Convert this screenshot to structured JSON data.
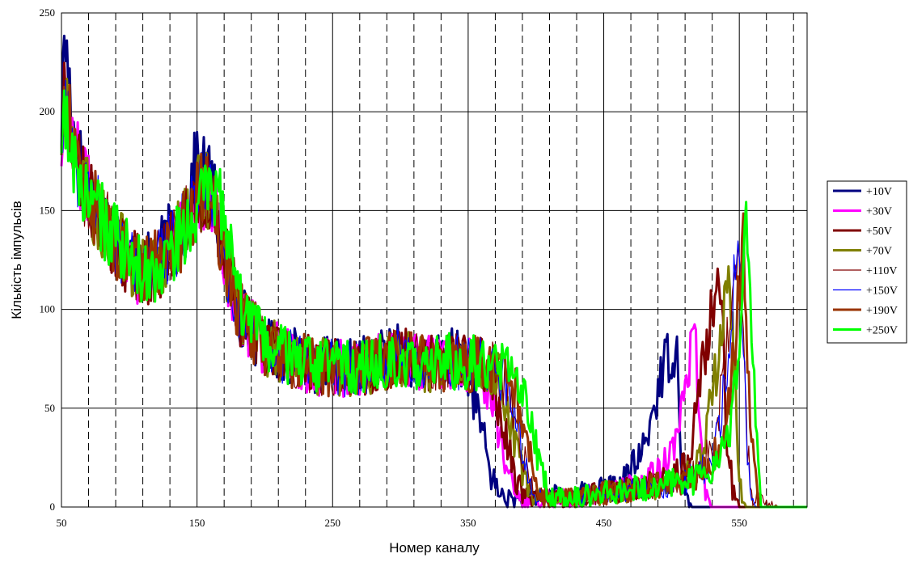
{
  "chart_data": {
    "type": "line",
    "xlabel": "Номер каналу",
    "ylabel": "Кількість імпульсів",
    "xlim": [
      50,
      600
    ],
    "ylim": [
      0,
      250
    ],
    "x_ticks": [
      50,
      150,
      250,
      350,
      450,
      550
    ],
    "y_ticks": [
      0,
      50,
      100,
      150,
      200,
      250
    ],
    "major_x_grid": [
      150,
      250,
      350,
      450,
      550
    ],
    "minor_x_grid": [
      70,
      90,
      110,
      130,
      170,
      190,
      210,
      230,
      270,
      290,
      310,
      330,
      370,
      390,
      410,
      430,
      470,
      490,
      510,
      530,
      570,
      590
    ],
    "grid": true,
    "legend_position": "right",
    "series": [
      {
        "name": "+10V",
        "color": "#000080",
        "width": 3,
        "shift": 0,
        "x": [
          50,
          52,
          56,
          60,
          65,
          70,
          80,
          90,
          100,
          110,
          120,
          130,
          140,
          150,
          160,
          170,
          180,
          190,
          200,
          220,
          240,
          260,
          280,
          300,
          320,
          340,
          345,
          350,
          355,
          360,
          365,
          370,
          375,
          380,
          390,
          400,
          420,
          440,
          460,
          470,
          480,
          485,
          490,
          495,
          500,
          505,
          507,
          510,
          515,
          520,
          530,
          540,
          550,
          560,
          580,
          600
        ],
        "y": [
          190,
          240,
          215,
          185,
          172,
          162,
          148,
          138,
          125,
          118,
          125,
          135,
          148,
          175,
          165,
          130,
          100,
          90,
          82,
          76,
          72,
          70,
          74,
          78,
          72,
          76,
          74,
          68,
          55,
          40,
          22,
          10,
          6,
          4,
          3,
          5,
          6,
          8,
          10,
          18,
          30,
          45,
          60,
          72,
          80,
          75,
          30,
          5,
          0,
          0,
          0,
          0,
          0,
          0,
          0,
          0
        ]
      },
      {
        "name": "+30V",
        "color": "#ff00ff",
        "width": 3,
        "shift": 3,
        "x": [
          50,
          52,
          56,
          60,
          65,
          70,
          80,
          90,
          100,
          110,
          120,
          130,
          140,
          150,
          160,
          170,
          180,
          190,
          200,
          220,
          240,
          260,
          280,
          300,
          320,
          340,
          350,
          360,
          365,
          370,
          375,
          380,
          385,
          390,
          400,
          420,
          440,
          460,
          470,
          480,
          490,
          500,
          505,
          510,
          515,
          518,
          520,
          525,
          530,
          540,
          550,
          560,
          580,
          600
        ],
        "y": [
          180,
          218,
          200,
          180,
          168,
          158,
          145,
          135,
          125,
          118,
          122,
          130,
          140,
          160,
          160,
          128,
          100,
          90,
          82,
          75,
          71,
          70,
          72,
          76,
          72,
          74,
          73,
          70,
          60,
          45,
          28,
          14,
          7,
          4,
          3,
          5,
          6,
          8,
          10,
          12,
          18,
          28,
          45,
          65,
          80,
          85,
          40,
          10,
          0,
          0,
          0,
          0,
          0,
          0
        ]
      },
      {
        "name": "+50V",
        "color": "#800000",
        "width": 3,
        "shift": 6,
        "x": [
          50,
          52,
          56,
          60,
          65,
          70,
          80,
          90,
          100,
          110,
          120,
          130,
          140,
          150,
          160,
          170,
          180,
          190,
          200,
          220,
          240,
          260,
          280,
          300,
          320,
          340,
          350,
          360,
          365,
          370,
          375,
          380,
          385,
          390,
          395,
          400,
          420,
          440,
          460,
          480,
          500,
          510,
          515,
          520,
          525,
          530,
          535,
          538,
          540,
          545,
          550,
          560,
          580,
          600
        ],
        "y": [
          185,
          210,
          195,
          178,
          165,
          158,
          145,
          135,
          125,
          118,
          122,
          130,
          140,
          160,
          160,
          128,
          100,
          90,
          82,
          75,
          71,
          70,
          72,
          76,
          72,
          74,
          73,
          72,
          68,
          60,
          45,
          28,
          14,
          7,
          4,
          3,
          5,
          6,
          8,
          10,
          14,
          20,
          35,
          55,
          80,
          100,
          110,
          85,
          40,
          10,
          0,
          0,
          0,
          0
        ]
      },
      {
        "name": "+70V",
        "color": "#808000",
        "width": 3,
        "shift": 9,
        "x": [
          50,
          52,
          56,
          60,
          65,
          70,
          80,
          90,
          100,
          110,
          120,
          130,
          140,
          150,
          160,
          170,
          180,
          190,
          200,
          220,
          240,
          260,
          280,
          300,
          320,
          340,
          350,
          360,
          370,
          375,
          380,
          385,
          390,
          395,
          400,
          410,
          420,
          440,
          460,
          480,
          500,
          510,
          520,
          525,
          530,
          535,
          540,
          543,
          545,
          548,
          550,
          555,
          560,
          580,
          600
        ],
        "y": [
          180,
          205,
          192,
          176,
          165,
          156,
          145,
          135,
          125,
          118,
          122,
          130,
          140,
          158,
          160,
          128,
          100,
          90,
          82,
          75,
          71,
          70,
          72,
          76,
          72,
          74,
          73,
          72,
          70,
          62,
          48,
          32,
          18,
          9,
          5,
          3,
          4,
          6,
          8,
          10,
          12,
          16,
          22,
          35,
          55,
          80,
          105,
          118,
          90,
          45,
          12,
          0,
          0,
          0,
          0
        ]
      },
      {
        "name": "+110V",
        "color": "#800000",
        "width": 1.2,
        "shift": 12,
        "x": [
          50,
          52,
          56,
          60,
          65,
          70,
          80,
          90,
          100,
          110,
          120,
          130,
          140,
          150,
          160,
          170,
          180,
          190,
          200,
          220,
          240,
          260,
          280,
          300,
          320,
          340,
          350,
          360,
          370,
          380,
          385,
          390,
          395,
          400,
          410,
          420,
          440,
          460,
          480,
          500,
          520,
          530,
          535,
          540,
          545,
          550,
          553,
          556,
          560,
          580,
          600
        ],
        "y": [
          180,
          200,
          190,
          175,
          163,
          155,
          145,
          135,
          125,
          118,
          122,
          130,
          140,
          158,
          160,
          128,
          100,
          90,
          82,
          75,
          71,
          70,
          72,
          76,
          72,
          74,
          73,
          72,
          70,
          60,
          45,
          28,
          14,
          6,
          3,
          4,
          6,
          8,
          10,
          12,
          18,
          30,
          50,
          80,
          110,
          125,
          80,
          30,
          5,
          0,
          0
        ]
      },
      {
        "name": "+150V",
        "color": "#0000ff",
        "width": 1.2,
        "shift": 14,
        "x": [
          50,
          52,
          56,
          60,
          65,
          70,
          80,
          90,
          100,
          110,
          120,
          130,
          140,
          150,
          160,
          170,
          180,
          190,
          200,
          220,
          240,
          260,
          280,
          300,
          320,
          340,
          350,
          360,
          370,
          380,
          385,
          390,
          395,
          400,
          410,
          420,
          440,
          460,
          480,
          500,
          520,
          530,
          535,
          540,
          545,
          549,
          552,
          555,
          558,
          562,
          580,
          600
        ],
        "y": [
          180,
          200,
          190,
          175,
          163,
          155,
          145,
          135,
          125,
          118,
          122,
          130,
          140,
          158,
          165,
          128,
          100,
          90,
          82,
          75,
          71,
          70,
          72,
          76,
          72,
          74,
          73,
          72,
          70,
          62,
          48,
          30,
          15,
          6,
          3,
          4,
          6,
          8,
          10,
          12,
          16,
          25,
          40,
          65,
          100,
          140,
          100,
          40,
          8,
          0,
          0,
          0
        ]
      },
      {
        "name": "+190V",
        "color": "#993300",
        "width": 3,
        "shift": 16,
        "x": [
          50,
          52,
          56,
          60,
          65,
          70,
          80,
          90,
          100,
          110,
          120,
          130,
          140,
          150,
          160,
          170,
          180,
          190,
          200,
          220,
          240,
          260,
          280,
          300,
          320,
          340,
          350,
          360,
          370,
          380,
          385,
          390,
          395,
          400,
          405,
          410,
          420,
          440,
          460,
          480,
          500,
          520,
          530,
          540,
          545,
          550,
          553,
          556,
          560,
          565,
          580,
          600
        ],
        "y": [
          175,
          205,
          195,
          178,
          165,
          156,
          145,
          135,
          125,
          118,
          122,
          130,
          140,
          158,
          165,
          128,
          100,
          90,
          82,
          75,
          71,
          70,
          72,
          76,
          72,
          74,
          73,
          72,
          70,
          68,
          60,
          45,
          28,
          14,
          6,
          3,
          4,
          6,
          8,
          10,
          12,
          16,
          22,
          40,
          70,
          110,
          130,
          80,
          25,
          0,
          0,
          0
        ]
      },
      {
        "name": "+250V",
        "color": "#00ff00",
        "width": 3,
        "shift": 18,
        "x": [
          50,
          52,
          56,
          60,
          65,
          70,
          80,
          90,
          100,
          110,
          120,
          130,
          140,
          150,
          160,
          170,
          180,
          190,
          200,
          220,
          240,
          260,
          280,
          300,
          320,
          340,
          350,
          360,
          370,
          380,
          390,
          395,
          400,
          405,
          410,
          420,
          440,
          460,
          480,
          500,
          520,
          530,
          540,
          545,
          550,
          553,
          555,
          558,
          562,
          566,
          580,
          600
        ],
        "y": [
          170,
          195,
          185,
          172,
          162,
          155,
          145,
          135,
          125,
          118,
          120,
          128,
          138,
          150,
          160,
          150,
          105,
          90,
          82,
          75,
          71,
          70,
          72,
          76,
          72,
          74,
          73,
          72,
          72,
          70,
          62,
          48,
          30,
          15,
          6,
          4,
          6,
          8,
          10,
          12,
          14,
          20,
          30,
          50,
          80,
          120,
          160,
          110,
          40,
          0,
          0,
          0
        ]
      }
    ]
  }
}
